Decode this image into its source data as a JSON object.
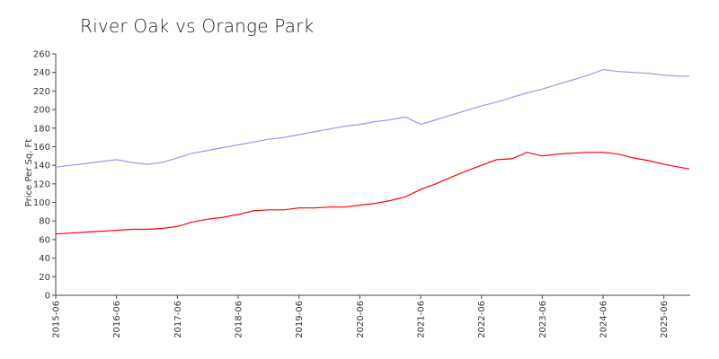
{
  "chart_data": {
    "type": "line",
    "title": "River Oak vs Orange Park",
    "xlabel": "",
    "ylabel": "Price Per Sq. Ft",
    "ylim": [
      0,
      260
    ],
    "yticks": [
      0,
      20,
      40,
      60,
      80,
      100,
      120,
      140,
      160,
      180,
      200,
      220,
      240,
      260
    ],
    "xticks": [
      "2015-06",
      "2016-06",
      "2017-06",
      "2018-06",
      "2019-06",
      "2020-06",
      "2021-06",
      "2022-06",
      "2023-06",
      "2024-06",
      "2025-06"
    ],
    "x_range": [
      "2015-06",
      "2025-11"
    ],
    "grid": false,
    "legend": "none",
    "series": [
      {
        "color": "#9999ee",
        "points": [
          [
            "2015-06",
            138
          ],
          [
            "2015-09",
            140
          ],
          [
            "2015-12",
            142
          ],
          [
            "2016-03",
            144
          ],
          [
            "2016-06",
            146
          ],
          [
            "2016-09",
            143
          ],
          [
            "2016-12",
            141
          ],
          [
            "2017-03",
            143
          ],
          [
            "2017-06",
            148
          ],
          [
            "2017-09",
            153
          ],
          [
            "2017-12",
            156
          ],
          [
            "2018-03",
            159
          ],
          [
            "2018-06",
            162
          ],
          [
            "2018-09",
            165
          ],
          [
            "2018-12",
            168
          ],
          [
            "2019-03",
            170
          ],
          [
            "2019-06",
            173
          ],
          [
            "2019-09",
            176
          ],
          [
            "2019-12",
            179
          ],
          [
            "2020-03",
            182
          ],
          [
            "2020-06",
            184
          ],
          [
            "2020-09",
            187
          ],
          [
            "2020-12",
            189
          ],
          [
            "2021-03",
            192
          ],
          [
            "2021-06",
            184
          ],
          [
            "2021-09",
            189
          ],
          [
            "2021-12",
            194
          ],
          [
            "2022-03",
            199
          ],
          [
            "2022-06",
            204
          ],
          [
            "2022-09",
            208
          ],
          [
            "2022-12",
            213
          ],
          [
            "2023-03",
            218
          ],
          [
            "2023-06",
            222
          ],
          [
            "2023-09",
            227
          ],
          [
            "2023-12",
            232
          ],
          [
            "2024-03",
            237
          ],
          [
            "2024-06",
            243
          ],
          [
            "2024-09",
            241
          ],
          [
            "2024-12",
            240
          ],
          [
            "2025-03",
            239
          ],
          [
            "2025-06",
            237
          ],
          [
            "2025-09",
            236
          ],
          [
            "2025-11",
            236
          ]
        ]
      },
      {
        "color": "#ff0000",
        "points": [
          [
            "2015-06",
            66
          ],
          [
            "2015-09",
            67
          ],
          [
            "2015-12",
            68
          ],
          [
            "2016-03",
            69
          ],
          [
            "2016-06",
            70
          ],
          [
            "2016-09",
            71
          ],
          [
            "2016-12",
            71
          ],
          [
            "2017-03",
            72
          ],
          [
            "2017-06",
            74
          ],
          [
            "2017-09",
            79
          ],
          [
            "2017-12",
            82
          ],
          [
            "2018-03",
            84
          ],
          [
            "2018-06",
            87
          ],
          [
            "2018-09",
            91
          ],
          [
            "2018-12",
            92
          ],
          [
            "2019-03",
            92
          ],
          [
            "2019-06",
            94
          ],
          [
            "2019-09",
            94
          ],
          [
            "2019-12",
            95
          ],
          [
            "2020-03",
            95
          ],
          [
            "2020-06",
            97
          ],
          [
            "2020-09",
            99
          ],
          [
            "2020-12",
            102
          ],
          [
            "2021-03",
            106
          ],
          [
            "2021-06",
            114
          ],
          [
            "2021-09",
            120
          ],
          [
            "2021-12",
            127
          ],
          [
            "2022-03",
            134
          ],
          [
            "2022-06",
            140
          ],
          [
            "2022-09",
            146
          ],
          [
            "2022-12",
            147
          ],
          [
            "2023-03",
            154
          ],
          [
            "2023-06",
            150
          ],
          [
            "2023-09",
            152
          ],
          [
            "2023-12",
            153
          ],
          [
            "2024-03",
            154
          ],
          [
            "2024-06",
            154
          ],
          [
            "2024-09",
            152
          ],
          [
            "2024-12",
            148
          ],
          [
            "2025-03",
            145
          ],
          [
            "2025-06",
            141
          ],
          [
            "2025-09",
            138
          ],
          [
            "2025-11",
            136
          ]
        ]
      }
    ]
  }
}
